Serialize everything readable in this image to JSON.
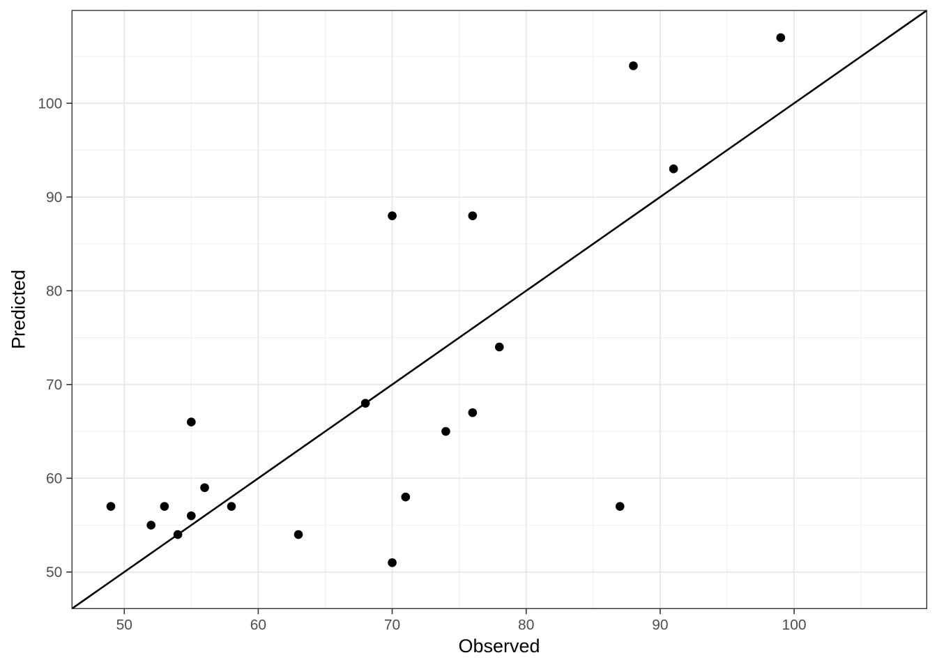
{
  "chart_data": {
    "type": "scatter",
    "title": "",
    "xlabel": "Observed",
    "ylabel": "Predicted",
    "x_ticks": [
      50,
      60,
      70,
      80,
      90,
      100
    ],
    "y_ticks": [
      50,
      60,
      70,
      80,
      90,
      100
    ],
    "x_minor_gridlines": [
      55,
      65,
      75,
      85,
      95,
      105
    ],
    "y_minor_gridlines": [
      55,
      65,
      75,
      85,
      95,
      105
    ],
    "xlim": [
      46.1,
      109.9
    ],
    "ylim": [
      46.1,
      109.9
    ],
    "grid": "on",
    "legend": "none",
    "points": [
      {
        "x": 49,
        "y": 57
      },
      {
        "x": 52,
        "y": 55
      },
      {
        "x": 53,
        "y": 57
      },
      {
        "x": 54,
        "y": 54
      },
      {
        "x": 55,
        "y": 56
      },
      {
        "x": 55,
        "y": 66
      },
      {
        "x": 56,
        "y": 59
      },
      {
        "x": 58,
        "y": 57
      },
      {
        "x": 63,
        "y": 54
      },
      {
        "x": 68,
        "y": 68
      },
      {
        "x": 70,
        "y": 51
      },
      {
        "x": 70,
        "y": 88
      },
      {
        "x": 71,
        "y": 58
      },
      {
        "x": 74,
        "y": 65
      },
      {
        "x": 76,
        "y": 67
      },
      {
        "x": 76,
        "y": 88
      },
      {
        "x": 78,
        "y": 74
      },
      {
        "x": 87,
        "y": 57
      },
      {
        "x": 88,
        "y": 104
      },
      {
        "x": 91,
        "y": 93
      },
      {
        "x": 99,
        "y": 107
      }
    ],
    "identity_line": {
      "slope": 1,
      "intercept": 0
    },
    "colors": {
      "point": "#000000",
      "identity_line": "#000000",
      "grid_major": "#E9E9E9",
      "grid_minor": "#F2F2F2",
      "panel_border": "#333333",
      "tick_mark": "#333333",
      "tick_label": "#4D4D4D",
      "axis_title": "#000000",
      "panel_background": "#FFFFFF"
    }
  }
}
